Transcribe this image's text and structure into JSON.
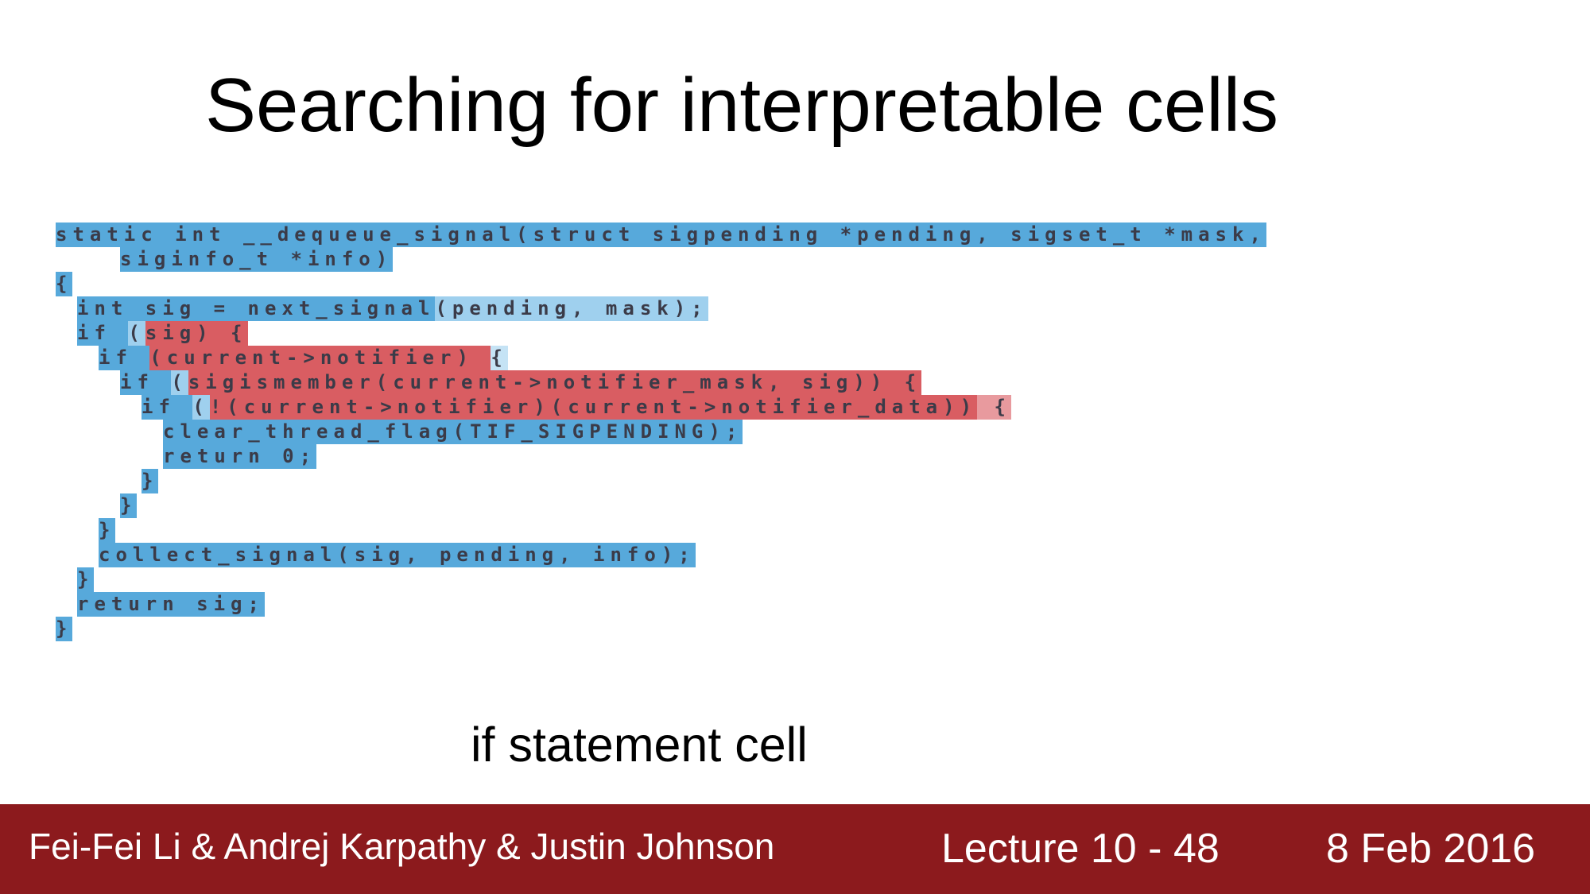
{
  "slide": {
    "title": "Searching for  interpretable cells",
    "caption": "if statement cell"
  },
  "colors": {
    "cell_off": "#57A9DB",
    "cell_off_light": "#9FD0EE",
    "cell_off_pale": "#C5E3F5",
    "cell_on": "#D95D62",
    "cell_on_light": "#E89A9E",
    "footer_background": "#8C1A1D",
    "code_text": "#3B3B48"
  },
  "code_lines": [
    {
      "indent": 0,
      "tokens": [
        {
          "text": "static int",
          "c": "b"
        },
        {
          "text": " __dequeue_signal(struct sigpending *pending, sigset_t *mask,",
          "c": "b"
        }
      ]
    },
    {
      "indent": 3,
      "tokens": [
        {
          "text": "siginfo_t *info)",
          "c": "b"
        }
      ]
    },
    {
      "indent": 0,
      "tokens": [
        {
          "text": "{",
          "c": "b"
        }
      ]
    },
    {
      "indent": 1,
      "tokens": [
        {
          "text": "int sig = next_signal",
          "c": "b"
        },
        {
          "text": "(pending, mask);",
          "c": "l"
        }
      ]
    },
    {
      "indent": 1,
      "tokens": [
        {
          "text": "if ",
          "c": "b"
        },
        {
          "text": "(",
          "c": "l"
        },
        {
          "text": "sig) {",
          "c": "r"
        }
      ]
    },
    {
      "indent": 2,
      "tokens": [
        {
          "text": "if ",
          "c": "b"
        },
        {
          "text": "(current->notifier) ",
          "c": "r"
        },
        {
          "text": "{",
          "c": "q"
        }
      ]
    },
    {
      "indent": 3,
      "tokens": [
        {
          "text": "if ",
          "c": "b"
        },
        {
          "text": "(",
          "c": "l"
        },
        {
          "text": "sigismember(current->notifier_mask, sig)) {",
          "c": "r"
        }
      ]
    },
    {
      "indent": 4,
      "tokens": [
        {
          "text": "if ",
          "c": "b"
        },
        {
          "text": "(",
          "c": "l"
        },
        {
          "text": "!(current->notifier)(current->notifier_data))",
          "c": "r"
        },
        {
          "text": " {",
          "c": "p"
        }
      ]
    },
    {
      "indent": 5,
      "tokens": [
        {
          "text": "clear_thread_flag(TIF_SIGPENDING);",
          "c": "b"
        }
      ]
    },
    {
      "indent": 5,
      "tokens": [
        {
          "text": "return 0;",
          "c": "b"
        }
      ]
    },
    {
      "indent": 4,
      "tokens": [
        {
          "text": "}",
          "c": "b"
        }
      ]
    },
    {
      "indent": 3,
      "tokens": [
        {
          "text": "}",
          "c": "b"
        }
      ]
    },
    {
      "indent": 2,
      "tokens": [
        {
          "text": "}",
          "c": "b"
        }
      ]
    },
    {
      "indent": 2,
      "tokens": [
        {
          "text": "collect_signal(sig, pending, info);",
          "c": "b"
        }
      ]
    },
    {
      "indent": 1,
      "tokens": [
        {
          "text": "}",
          "c": "b"
        }
      ]
    },
    {
      "indent": 1,
      "tokens": [
        {
          "text": "return sig;",
          "c": "b"
        }
      ]
    },
    {
      "indent": 0,
      "tokens": [
        {
          "text": "}",
          "c": "b"
        }
      ]
    }
  ],
  "footer": {
    "authors": "Fei-Fei Li & Andrej Karpathy & Justin Johnson",
    "lecture": "Lecture 10 -  48",
    "date": "8 Feb 2016"
  }
}
